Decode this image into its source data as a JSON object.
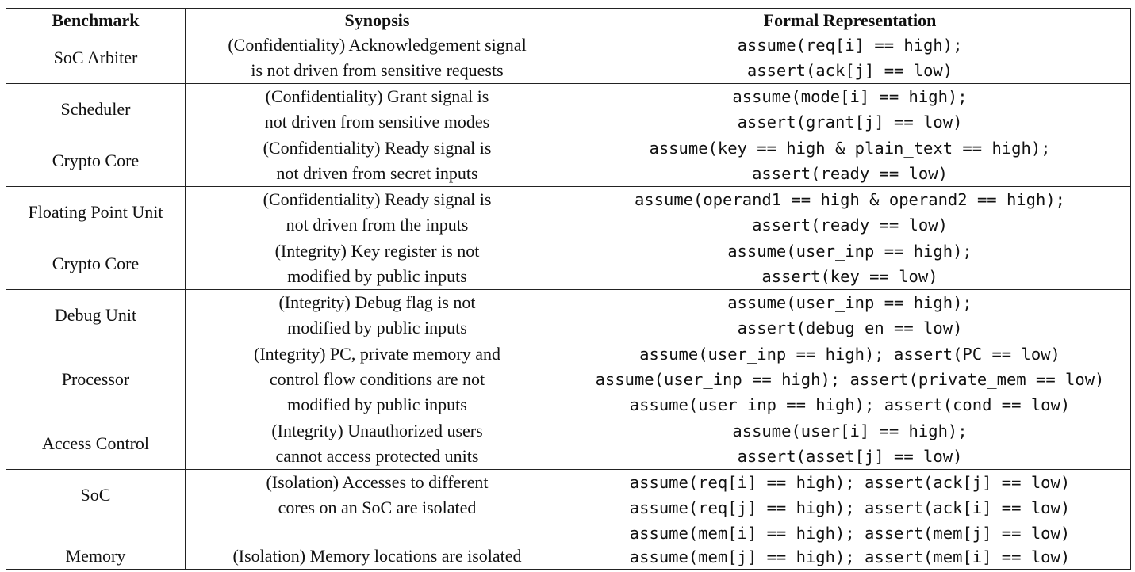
{
  "headers": {
    "benchmark": "Benchmark",
    "synopsis": "Synopsis",
    "formal": "Formal Representation"
  },
  "rows": [
    {
      "benchmark": "SoC Arbiter",
      "synopsis": [
        "(Confidentiality) Acknowledgement signal",
        "is not driven from sensitive requests"
      ],
      "formal": [
        "assume(req[i] == high);",
        "assert(ack[j] == low)"
      ]
    },
    {
      "benchmark": "Scheduler",
      "synopsis": [
        "(Confidentiality) Grant signal is",
        "not driven from sensitive modes"
      ],
      "formal": [
        "assume(mode[i] == high);",
        "assert(grant[j] == low)"
      ]
    },
    {
      "benchmark": "Crypto Core",
      "synopsis": [
        "(Confidentiality) Ready signal is",
        "not driven from secret inputs"
      ],
      "formal": [
        "assume(key == high & plain_text == high);",
        "assert(ready == low)"
      ]
    },
    {
      "benchmark": "Floating Point Unit",
      "synopsis": [
        "(Confidentiality) Ready signal is",
        "not driven from the inputs"
      ],
      "formal": [
        "assume(operand1 == high & operand2 == high);",
        "assert(ready == low)"
      ]
    },
    {
      "benchmark": "Crypto Core",
      "synopsis": [
        "(Integrity) Key register is not",
        "modified by public inputs"
      ],
      "formal": [
        "assume(user_inp == high);",
        "assert(key == low)"
      ]
    },
    {
      "benchmark": "Debug Unit",
      "synopsis": [
        "(Integrity) Debug flag is not",
        "modified by public inputs"
      ],
      "formal": [
        "assume(user_inp == high);",
        "assert(debug_en == low)"
      ]
    },
    {
      "benchmark": "Processor",
      "synopsis": [
        "(Integrity) PC, private memory and",
        "control flow conditions are not",
        "modified by public inputs"
      ],
      "formal": [
        "assume(user_inp == high); assert(PC == low)",
        "assume(user_inp == high); assert(private_mem == low)",
        "assume(user_inp == high); assert(cond == low)"
      ]
    },
    {
      "benchmark": "Access Control",
      "synopsis": [
        "(Integrity) Unauthorized users",
        "cannot access protected units"
      ],
      "formal": [
        "assume(user[i] == high);",
        "assert(asset[j] == low)"
      ]
    },
    {
      "benchmark": "SoC",
      "synopsis": [
        "(Isolation) Accesses to different",
        "cores on an SoC are isolated"
      ],
      "formal": [
        "assume(req[i] == high); assert(ack[j] == low)",
        "assume(req[j] == high); assert(ack[i] == low)"
      ]
    },
    {
      "benchmark": "Memory",
      "synopsis": [
        "(Isolation) Memory locations are isolated"
      ],
      "formal": [
        "assume(mem[i] == high); assert(mem[j] == low)",
        "assume(mem[j] == high); assert(mem[i] == low)"
      ]
    }
  ]
}
